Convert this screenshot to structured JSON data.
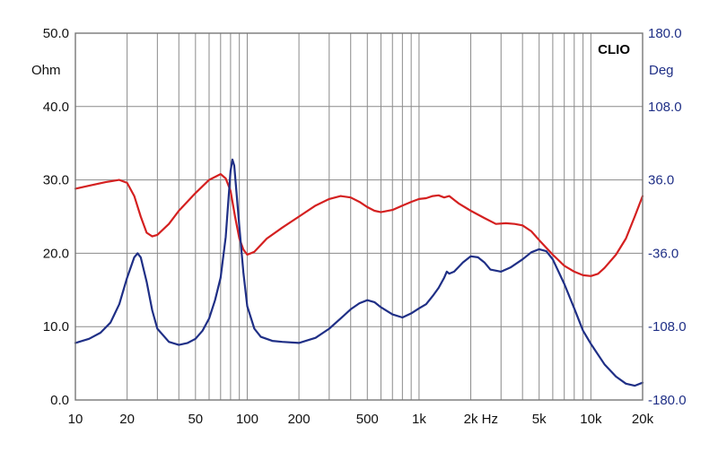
{
  "chart_data": {
    "type": "line",
    "title": "",
    "brand": "CLIO",
    "x_scale": "log",
    "xlim": [
      10,
      20000
    ],
    "x_ticks": [
      10,
      20,
      50,
      100,
      200,
      500,
      1000,
      2000,
      5000,
      10000,
      20000
    ],
    "x_tick_labels": [
      "10",
      "20",
      "50",
      "100",
      "200",
      "500",
      "1k",
      "2k Hz",
      "5k",
      "10k",
      "20k"
    ],
    "left_axis": {
      "unit": "Ohm",
      "lim": [
        0,
        50
      ],
      "ticks": [
        0,
        10,
        20,
        30,
        40,
        50
      ],
      "tick_labels": [
        "0.0",
        "10.0",
        "20.0",
        "30.0",
        "40.0",
        "50.0"
      ]
    },
    "right_axis": {
      "unit": "Deg",
      "lim": [
        -180,
        180
      ],
      "ticks": [
        -180,
        -108,
        -36,
        36,
        108,
        180
      ],
      "tick_labels": [
        "-180.0",
        "-108.0",
        "-36.0",
        "36.0",
        "108.0",
        "180.0"
      ]
    },
    "grid": true,
    "series": [
      {
        "axis": "left",
        "color": "#d42020",
        "points": [
          [
            10,
            28.8
          ],
          [
            12,
            29.2
          ],
          [
            15,
            29.7
          ],
          [
            18,
            30.0
          ],
          [
            20,
            29.6
          ],
          [
            22,
            27.8
          ],
          [
            24,
            25.0
          ],
          [
            26,
            22.8
          ],
          [
            28,
            22.3
          ],
          [
            30,
            22.5
          ],
          [
            35,
            24.0
          ],
          [
            40,
            25.8
          ],
          [
            50,
            28.2
          ],
          [
            60,
            30.0
          ],
          [
            70,
            30.8
          ],
          [
            75,
            30.2
          ],
          [
            80,
            28.5
          ],
          [
            85,
            25.0
          ],
          [
            90,
            22.0
          ],
          [
            95,
            20.5
          ],
          [
            100,
            19.8
          ],
          [
            110,
            20.2
          ],
          [
            130,
            22.0
          ],
          [
            160,
            23.5
          ],
          [
            200,
            25.0
          ],
          [
            250,
            26.5
          ],
          [
            300,
            27.4
          ],
          [
            350,
            27.8
          ],
          [
            400,
            27.6
          ],
          [
            450,
            27.0
          ],
          [
            500,
            26.3
          ],
          [
            550,
            25.8
          ],
          [
            600,
            25.6
          ],
          [
            700,
            25.9
          ],
          [
            800,
            26.5
          ],
          [
            900,
            27.0
          ],
          [
            1000,
            27.4
          ],
          [
            1100,
            27.5
          ],
          [
            1200,
            27.8
          ],
          [
            1300,
            27.9
          ],
          [
            1400,
            27.6
          ],
          [
            1500,
            27.8
          ],
          [
            1700,
            26.8
          ],
          [
            2000,
            25.8
          ],
          [
            2400,
            24.8
          ],
          [
            2800,
            24.0
          ],
          [
            3200,
            24.1
          ],
          [
            3600,
            24.0
          ],
          [
            4000,
            23.8
          ],
          [
            4500,
            23.0
          ],
          [
            5000,
            21.8
          ],
          [
            6000,
            19.8
          ],
          [
            7000,
            18.3
          ],
          [
            8000,
            17.5
          ],
          [
            9000,
            17.0
          ],
          [
            10000,
            16.9
          ],
          [
            11000,
            17.2
          ],
          [
            12000,
            18.0
          ],
          [
            14000,
            19.8
          ],
          [
            16000,
            22.0
          ],
          [
            18000,
            25.0
          ],
          [
            20000,
            27.8
          ]
        ]
      },
      {
        "axis": "right",
        "color": "#1f2f86",
        "points": [
          [
            10,
            -124
          ],
          [
            12,
            -120
          ],
          [
            14,
            -114
          ],
          [
            16,
            -104
          ],
          [
            18,
            -86
          ],
          [
            20,
            -60
          ],
          [
            22,
            -40
          ],
          [
            23,
            -36
          ],
          [
            24,
            -40
          ],
          [
            26,
            -64
          ],
          [
            28,
            -92
          ],
          [
            30,
            -110
          ],
          [
            35,
            -123
          ],
          [
            40,
            -126
          ],
          [
            45,
            -124
          ],
          [
            50,
            -120
          ],
          [
            55,
            -112
          ],
          [
            60,
            -100
          ],
          [
            65,
            -82
          ],
          [
            70,
            -60
          ],
          [
            75,
            -20
          ],
          [
            78,
            20
          ],
          [
            80,
            45
          ],
          [
            82,
            56
          ],
          [
            84,
            50
          ],
          [
            86,
            30
          ],
          [
            90,
            -10
          ],
          [
            95,
            -55
          ],
          [
            100,
            -88
          ],
          [
            110,
            -110
          ],
          [
            120,
            -118
          ],
          [
            140,
            -122
          ],
          [
            160,
            -123
          ],
          [
            200,
            -124
          ],
          [
            250,
            -119
          ],
          [
            300,
            -110
          ],
          [
            350,
            -100
          ],
          [
            400,
            -91
          ],
          [
            450,
            -85
          ],
          [
            500,
            -82
          ],
          [
            550,
            -84
          ],
          [
            600,
            -89
          ],
          [
            700,
            -96
          ],
          [
            800,
            -99
          ],
          [
            900,
            -95
          ],
          [
            1000,
            -90
          ],
          [
            1100,
            -86
          ],
          [
            1200,
            -78
          ],
          [
            1300,
            -70
          ],
          [
            1400,
            -60
          ],
          [
            1450,
            -54
          ],
          [
            1500,
            -56
          ],
          [
            1600,
            -54
          ],
          [
            1800,
            -45
          ],
          [
            2000,
            -39
          ],
          [
            2200,
            -40
          ],
          [
            2400,
            -45
          ],
          [
            2600,
            -52
          ],
          [
            3000,
            -54
          ],
          [
            3400,
            -50
          ],
          [
            4000,
            -42
          ],
          [
            4500,
            -35
          ],
          [
            5000,
            -32
          ],
          [
            5500,
            -34
          ],
          [
            6000,
            -42
          ],
          [
            7000,
            -66
          ],
          [
            8000,
            -90
          ],
          [
            9000,
            -112
          ],
          [
            10000,
            -125
          ],
          [
            12000,
            -145
          ],
          [
            14000,
            -157
          ],
          [
            16000,
            -164
          ],
          [
            18000,
            -166
          ],
          [
            20000,
            -163
          ]
        ]
      }
    ]
  }
}
